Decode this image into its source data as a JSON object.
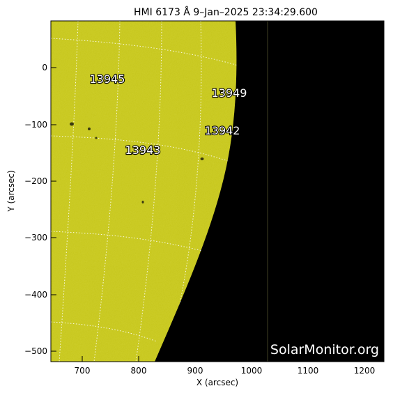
{
  "title": "HMI 6173 Å  9–Jan–2025 23:34:29.600",
  "xlabel": "X (arcsec)",
  "ylabel": "Y (arcsec)",
  "watermark": "SolarMonitor.org",
  "x_ticks": [
    "700",
    "800",
    "900",
    "1000",
    "1100",
    "1200"
  ],
  "y_ticks": [
    "0",
    "−100",
    "−200",
    "−300",
    "−400",
    "−500"
  ],
  "regions": [
    {
      "id": "13945",
      "x": 725,
      "y": -20
    },
    {
      "id": "13949",
      "x": 957,
      "y": -55
    },
    {
      "id": "13942",
      "x": 952,
      "y": -130
    },
    {
      "id": "13943",
      "x": 780,
      "y": -155
    }
  ],
  "colors": {
    "disk": "#c8c816",
    "space": "#000000",
    "grid": "#ffffff"
  }
}
